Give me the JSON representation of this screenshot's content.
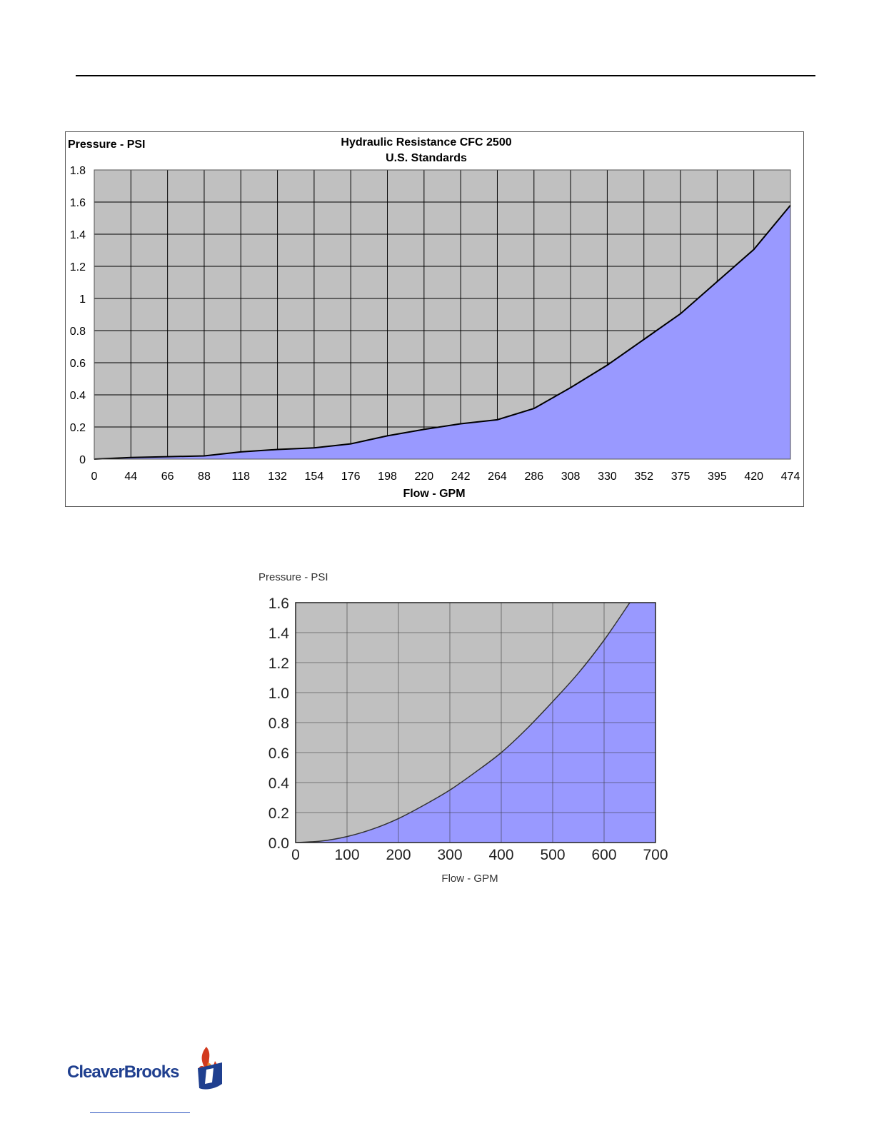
{
  "chart_data": [
    {
      "type": "area",
      "title": "Hydraulic Resistance CFC 2500",
      "subtitle": "U.S. Standards",
      "ylabel": "Pressure - PSI",
      "xlabel": "Flow - GPM",
      "categories": [
        "0",
        "44",
        "66",
        "88",
        "118",
        "132",
        "154",
        "176",
        "198",
        "220",
        "242",
        "264",
        "286",
        "308",
        "330",
        "352",
        "375",
        "395",
        "420",
        "474"
      ],
      "values": [
        0,
        0.01,
        0.015,
        0.02,
        0.045,
        0.06,
        0.07,
        0.095,
        0.145,
        0.185,
        0.22,
        0.245,
        0.315,
        0.445,
        0.585,
        0.745,
        0.905,
        1.105,
        1.305,
        1.58
      ],
      "ylim": [
        0,
        1.8
      ],
      "yticks": [
        "0",
        "0.2",
        "0.4",
        "0.6",
        "0.8",
        "1",
        "1.2",
        "1.4",
        "1.6",
        "1.8"
      ],
      "grid": true,
      "fill_color": "#9999ff",
      "plot_bg": "#c0c0c0"
    },
    {
      "type": "area",
      "ylabel": "Pressure - PSI",
      "xlabel": "Flow - GPM",
      "x": [
        0,
        50,
        100,
        150,
        200,
        250,
        300,
        350,
        400,
        450,
        500,
        550,
        600,
        650
      ],
      "values": [
        0,
        0.01,
        0.04,
        0.09,
        0.16,
        0.25,
        0.35,
        0.47,
        0.6,
        0.76,
        0.94,
        1.13,
        1.35,
        1.6
      ],
      "xlim": [
        0,
        700
      ],
      "ylim": [
        0,
        1.6
      ],
      "xticks": [
        "0",
        "100",
        "200",
        "300",
        "400",
        "500",
        "600",
        "700"
      ],
      "yticks": [
        "0.0",
        "0.2",
        "0.4",
        "0.6",
        "0.8",
        "1.0",
        "1.2",
        "1.4",
        "1.6"
      ],
      "grid": true,
      "fill_color": "#9999ff",
      "plot_bg": "#c0c0c0"
    }
  ],
  "logo": {
    "text": "CleaverBrooks"
  }
}
